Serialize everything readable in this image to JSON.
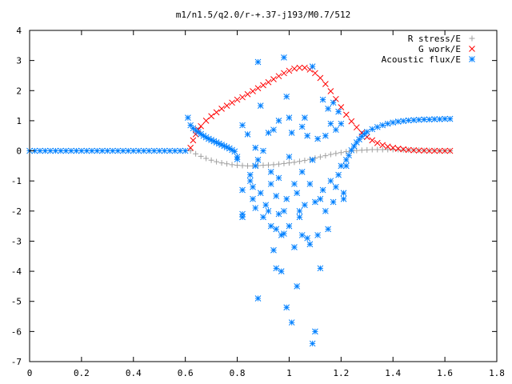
{
  "chart_data": {
    "type": "scatter",
    "title": "m1/n1.5/q2.0/r-+.37-j193/M0.7/512",
    "xlabel": "",
    "ylabel": "",
    "xlim": [
      0,
      1.8
    ],
    "ylim": [
      -7,
      4
    ],
    "x_ticks": [
      "0",
      "0.2",
      "0.4",
      "0.6",
      "0.8",
      "1",
      "1.2",
      "1.4",
      "1.6",
      "1.8"
    ],
    "y_ticks": [
      "4",
      "3",
      "2",
      "1",
      "0",
      "-1",
      "-2",
      "-3",
      "-4",
      "-5",
      "-6",
      "-7"
    ],
    "grid": false,
    "legend_position": "top-right",
    "colors": {
      "r_stress": "#a0a0a0",
      "g_work": "#ff0000",
      "acoustic_flux": "#0080ff",
      "frame": "#000000"
    },
    "series": [
      {
        "name": "R stress/E",
        "marker": "+",
        "points": [
          [
            0.62,
            0.0
          ],
          [
            0.64,
            -0.1
          ],
          [
            0.66,
            -0.18
          ],
          [
            0.68,
            -0.25
          ],
          [
            0.7,
            -0.31
          ],
          [
            0.72,
            -0.36
          ],
          [
            0.74,
            -0.4
          ],
          [
            0.76,
            -0.43
          ],
          [
            0.78,
            -0.46
          ],
          [
            0.8,
            -0.48
          ],
          [
            0.82,
            -0.49
          ],
          [
            0.84,
            -0.5
          ],
          [
            0.86,
            -0.5
          ],
          [
            0.88,
            -0.49
          ],
          [
            0.9,
            -0.48
          ],
          [
            0.92,
            -0.47
          ],
          [
            0.94,
            -0.46
          ],
          [
            0.96,
            -0.44
          ],
          [
            0.98,
            -0.42
          ],
          [
            1.0,
            -0.4
          ],
          [
            1.02,
            -0.38
          ],
          [
            1.04,
            -0.35
          ],
          [
            1.06,
            -0.32
          ],
          [
            1.08,
            -0.28
          ],
          [
            1.1,
            -0.24
          ],
          [
            1.12,
            -0.2
          ],
          [
            1.14,
            -0.16
          ],
          [
            1.16,
            -0.12
          ],
          [
            1.18,
            -0.09
          ],
          [
            1.2,
            -0.06
          ],
          [
            1.22,
            -0.03
          ],
          [
            1.24,
            -0.01
          ],
          [
            1.26,
            0.01
          ],
          [
            1.28,
            0.02
          ],
          [
            1.3,
            0.03
          ],
          [
            1.32,
            0.04
          ],
          [
            1.34,
            0.04
          ],
          [
            1.36,
            0.04
          ],
          [
            1.38,
            0.04
          ],
          [
            1.4,
            0.04
          ],
          [
            1.42,
            0.04
          ],
          [
            1.44,
            0.03
          ],
          [
            1.46,
            0.03
          ],
          [
            1.48,
            0.02
          ],
          [
            1.5,
            0.02
          ],
          [
            1.52,
            0.01
          ],
          [
            1.54,
            0.01
          ],
          [
            1.56,
            0.01
          ],
          [
            1.58,
            0.0
          ],
          [
            1.6,
            0.0
          ],
          [
            1.62,
            0.0
          ]
        ]
      },
      {
        "name": "G work/E",
        "marker": "x",
        "points": [
          [
            0.62,
            0.1
          ],
          [
            0.63,
            0.35
          ],
          [
            0.64,
            0.55
          ],
          [
            0.65,
            0.7
          ],
          [
            0.66,
            0.82
          ],
          [
            0.68,
            1.0
          ],
          [
            0.7,
            1.15
          ],
          [
            0.72,
            1.28
          ],
          [
            0.74,
            1.4
          ],
          [
            0.76,
            1.5
          ],
          [
            0.78,
            1.6
          ],
          [
            0.8,
            1.7
          ],
          [
            0.82,
            1.78
          ],
          [
            0.84,
            1.88
          ],
          [
            0.86,
            1.98
          ],
          [
            0.88,
            2.08
          ],
          [
            0.9,
            2.18
          ],
          [
            0.92,
            2.28
          ],
          [
            0.94,
            2.38
          ],
          [
            0.96,
            2.48
          ],
          [
            0.98,
            2.58
          ],
          [
            1.0,
            2.66
          ],
          [
            1.02,
            2.73
          ],
          [
            1.04,
            2.76
          ],
          [
            1.06,
            2.76
          ],
          [
            1.08,
            2.7
          ],
          [
            1.1,
            2.58
          ],
          [
            1.12,
            2.42
          ],
          [
            1.14,
            2.22
          ],
          [
            1.16,
            1.98
          ],
          [
            1.18,
            1.72
          ],
          [
            1.2,
            1.45
          ],
          [
            1.22,
            1.2
          ],
          [
            1.24,
            0.98
          ],
          [
            1.26,
            0.78
          ],
          [
            1.28,
            0.6
          ],
          [
            1.3,
            0.46
          ],
          [
            1.32,
            0.35
          ],
          [
            1.34,
            0.26
          ],
          [
            1.36,
            0.19
          ],
          [
            1.38,
            0.14
          ],
          [
            1.4,
            0.1
          ],
          [
            1.42,
            0.07
          ],
          [
            1.44,
            0.05
          ],
          [
            1.46,
            0.03
          ],
          [
            1.48,
            0.02
          ],
          [
            1.5,
            0.01
          ],
          [
            1.52,
            0.01
          ],
          [
            1.54,
            0.0
          ],
          [
            1.56,
            0.0
          ],
          [
            1.58,
            0.0
          ],
          [
            1.6,
            0.0
          ],
          [
            1.62,
            0.0
          ]
        ]
      },
      {
        "name": "Acoustic flux/E",
        "marker": "*",
        "points": [
          [
            0.0,
            0.0
          ],
          [
            0.02,
            0.0
          ],
          [
            0.04,
            0.0
          ],
          [
            0.06,
            0.0
          ],
          [
            0.08,
            0.0
          ],
          [
            0.1,
            0.0
          ],
          [
            0.12,
            0.0
          ],
          [
            0.14,
            0.0
          ],
          [
            0.16,
            0.0
          ],
          [
            0.18,
            0.0
          ],
          [
            0.2,
            0.0
          ],
          [
            0.22,
            0.0
          ],
          [
            0.24,
            0.0
          ],
          [
            0.26,
            0.0
          ],
          [
            0.28,
            0.0
          ],
          [
            0.3,
            0.0
          ],
          [
            0.32,
            0.0
          ],
          [
            0.34,
            0.0
          ],
          [
            0.36,
            0.0
          ],
          [
            0.38,
            0.0
          ],
          [
            0.4,
            0.0
          ],
          [
            0.42,
            0.0
          ],
          [
            0.44,
            0.0
          ],
          [
            0.46,
            0.0
          ],
          [
            0.48,
            0.0
          ],
          [
            0.5,
            0.0
          ],
          [
            0.52,
            0.0
          ],
          [
            0.54,
            0.0
          ],
          [
            0.56,
            0.0
          ],
          [
            0.58,
            0.0
          ],
          [
            0.6,
            0.0
          ],
          [
            0.61,
            1.1
          ],
          [
            0.62,
            0.85
          ],
          [
            0.63,
            0.75
          ],
          [
            0.64,
            0.68
          ],
          [
            0.65,
            0.62
          ],
          [
            0.66,
            0.56
          ],
          [
            0.67,
            0.5
          ],
          [
            0.68,
            0.45
          ],
          [
            0.69,
            0.4
          ],
          [
            0.7,
            0.36
          ],
          [
            0.71,
            0.32
          ],
          [
            0.72,
            0.28
          ],
          [
            0.73,
            0.24
          ],
          [
            0.74,
            0.2
          ],
          [
            0.75,
            0.16
          ],
          [
            0.76,
            0.12
          ],
          [
            0.77,
            0.08
          ],
          [
            0.78,
            0.03
          ],
          [
            0.79,
            -0.02
          ],
          [
            0.8,
            -0.2
          ],
          [
            0.8,
            -0.28
          ],
          [
            0.82,
            0.85
          ],
          [
            0.82,
            -1.3
          ],
          [
            0.82,
            -2.1
          ],
          [
            0.82,
            -2.2
          ],
          [
            0.84,
            0.55
          ],
          [
            0.85,
            -0.8
          ],
          [
            0.85,
            -1.0
          ],
          [
            0.86,
            -1.2
          ],
          [
            0.86,
            -1.6
          ],
          [
            0.87,
            0.1
          ],
          [
            0.87,
            -0.5
          ],
          [
            0.87,
            -1.9
          ],
          [
            0.88,
            2.95
          ],
          [
            0.88,
            -4.9
          ],
          [
            0.88,
            -0.3
          ],
          [
            0.89,
            1.5
          ],
          [
            0.89,
            -1.4
          ],
          [
            0.9,
            0.0
          ],
          [
            0.9,
            -2.2
          ],
          [
            0.91,
            -1.8
          ],
          [
            0.92,
            0.6
          ],
          [
            0.92,
            -2.0
          ],
          [
            0.93,
            -0.7
          ],
          [
            0.93,
            -1.1
          ],
          [
            0.93,
            -2.5
          ],
          [
            0.94,
            0.7
          ],
          [
            0.94,
            -3.3
          ],
          [
            0.95,
            -1.5
          ],
          [
            0.95,
            -2.6
          ],
          [
            0.95,
            -3.9
          ],
          [
            0.96,
            1.0
          ],
          [
            0.96,
            -0.9
          ],
          [
            0.96,
            -2.1
          ],
          [
            0.97,
            -2.8
          ],
          [
            0.97,
            -4.0
          ],
          [
            0.98,
            3.1
          ],
          [
            0.98,
            -2.0
          ],
          [
            0.98,
            -2.75
          ],
          [
            0.99,
            1.8
          ],
          [
            0.99,
            -1.6
          ],
          [
            0.99,
            -5.2
          ],
          [
            1.0,
            1.1
          ],
          [
            1.0,
            -0.2
          ],
          [
            1.0,
            -2.5
          ],
          [
            1.01,
            0.6
          ],
          [
            1.01,
            -5.7
          ],
          [
            1.02,
            -1.1
          ],
          [
            1.02,
            -3.2
          ],
          [
            1.03,
            -1.4
          ],
          [
            1.03,
            -4.5
          ],
          [
            1.04,
            -2.2
          ],
          [
            1.04,
            -2.0
          ],
          [
            1.05,
            0.8
          ],
          [
            1.05,
            -0.7
          ],
          [
            1.05,
            -2.8
          ],
          [
            1.06,
            1.1
          ],
          [
            1.06,
            -1.8
          ],
          [
            1.07,
            -2.9
          ],
          [
            1.07,
            0.5
          ],
          [
            1.08,
            -1.1
          ],
          [
            1.08,
            -3.1
          ],
          [
            1.09,
            2.8
          ],
          [
            1.09,
            -0.3
          ],
          [
            1.09,
            -6.4
          ],
          [
            1.1,
            -6.0
          ],
          [
            1.1,
            -1.7
          ],
          [
            1.11,
            -2.8
          ],
          [
            1.11,
            0.4
          ],
          [
            1.12,
            -3.9
          ],
          [
            1.12,
            -1.6
          ],
          [
            1.13,
            1.7
          ],
          [
            1.13,
            -1.3
          ],
          [
            1.14,
            0.5
          ],
          [
            1.14,
            -2.0
          ],
          [
            1.15,
            1.4
          ],
          [
            1.15,
            -2.6
          ],
          [
            1.16,
            0.9
          ],
          [
            1.16,
            -1.0
          ],
          [
            1.17,
            1.6
          ],
          [
            1.17,
            -1.7
          ],
          [
            1.18,
            0.7
          ],
          [
            1.18,
            -1.2
          ],
          [
            1.19,
            1.3
          ],
          [
            1.19,
            -0.8
          ],
          [
            1.2,
            0.9
          ],
          [
            1.2,
            -0.5
          ],
          [
            1.21,
            -1.4
          ],
          [
            1.21,
            -1.6
          ],
          [
            1.22,
            -0.5
          ],
          [
            1.22,
            -0.3
          ],
          [
            1.23,
            -0.15
          ],
          [
            1.24,
            0.02
          ],
          [
            1.25,
            0.15
          ],
          [
            1.26,
            0.28
          ],
          [
            1.27,
            0.38
          ],
          [
            1.28,
            0.48
          ],
          [
            1.29,
            0.56
          ],
          [
            1.3,
            0.63
          ],
          [
            1.32,
            0.72
          ],
          [
            1.34,
            0.79
          ],
          [
            1.36,
            0.85
          ],
          [
            1.38,
            0.9
          ],
          [
            1.4,
            0.94
          ],
          [
            1.42,
            0.97
          ],
          [
            1.44,
            0.99
          ],
          [
            1.46,
            1.01
          ],
          [
            1.48,
            1.02
          ],
          [
            1.5,
            1.03
          ],
          [
            1.52,
            1.04
          ],
          [
            1.54,
            1.04
          ],
          [
            1.56,
            1.05
          ],
          [
            1.58,
            1.05
          ],
          [
            1.6,
            1.06
          ],
          [
            1.62,
            1.06
          ]
        ]
      }
    ]
  }
}
